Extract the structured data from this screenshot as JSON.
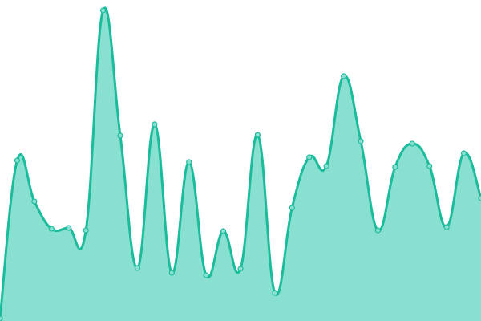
{
  "chart_data": {
    "type": "area",
    "title": "",
    "xlabel": "",
    "ylabel": "",
    "grid": false,
    "legend": "none",
    "curve": "smooth",
    "x": [
      0,
      1,
      2,
      3,
      4,
      5,
      6,
      7,
      8,
      9,
      10,
      11,
      12,
      13,
      14,
      15,
      16,
      17,
      18,
      19,
      20,
      21,
      22,
      23,
      24,
      25,
      26,
      27,
      28
    ],
    "xlim": [
      0,
      28
    ],
    "ylim": [
      0,
      400
    ],
    "series": [
      {
        "values": [
          3,
          200,
          149,
          115,
          116,
          113,
          387,
          231,
          66,
          245,
          60,
          198,
          57,
          112,
          65,
          232,
          35,
          141,
          204,
          193,
          305,
          224,
          113,
          192,
          221,
          193,
          117,
          209,
          153
        ],
        "color": "#1abc9c",
        "fill_color": "#8ae0d0",
        "marker_fill": "#8ae0d0"
      }
    ]
  }
}
